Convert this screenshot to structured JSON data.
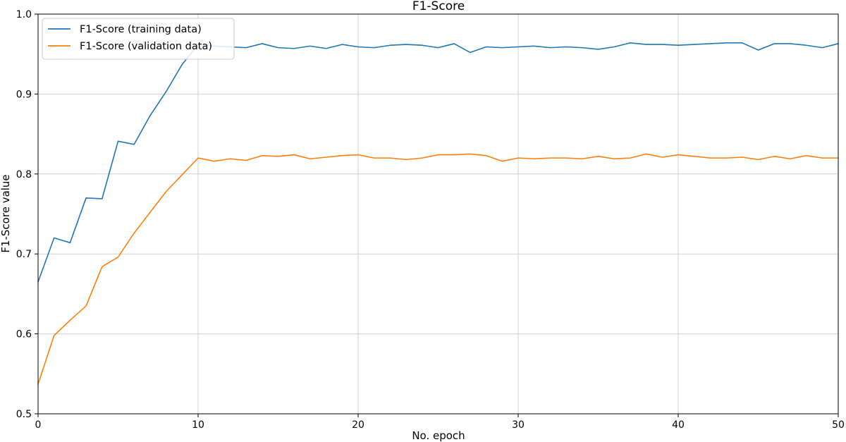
{
  "chart_data": {
    "type": "line",
    "title": "F1-Score",
    "xlabel": "No. epoch",
    "ylabel": "F1-Score value",
    "xlim": [
      0,
      50
    ],
    "ylim": [
      0.5,
      1.0
    ],
    "x_ticks": [
      0,
      10,
      20,
      30,
      40,
      50
    ],
    "y_ticks": [
      0.5,
      0.6,
      0.7,
      0.8,
      0.9,
      1.0
    ],
    "x_tick_labels": [
      "0",
      "10",
      "20",
      "30",
      "40",
      "50"
    ],
    "y_tick_labels": [
      "0.5",
      "0.6",
      "0.7",
      "0.8",
      "0.9",
      "1.0"
    ],
    "grid": true,
    "legend_position": "top-left",
    "x": [
      0,
      1,
      2,
      3,
      4,
      5,
      6,
      7,
      8,
      9,
      10,
      11,
      12,
      13,
      14,
      15,
      16,
      17,
      18,
      19,
      20,
      21,
      22,
      23,
      24,
      25,
      26,
      27,
      28,
      29,
      30,
      31,
      32,
      33,
      34,
      35,
      36,
      37,
      38,
      39,
      40,
      41,
      42,
      43,
      44,
      45,
      46,
      47,
      48,
      49,
      50
    ],
    "series": [
      {
        "name": "F1-Score (training data)",
        "color": "#1f77b4",
        "values": [
          0.665,
          0.72,
          0.714,
          0.77,
          0.769,
          0.841,
          0.837,
          0.873,
          0.903,
          0.937,
          0.962,
          0.96,
          0.959,
          0.958,
          0.963,
          0.958,
          0.957,
          0.96,
          0.957,
          0.962,
          0.959,
          0.958,
          0.961,
          0.962,
          0.961,
          0.958,
          0.963,
          0.952,
          0.959,
          0.958,
          0.959,
          0.96,
          0.958,
          0.959,
          0.958,
          0.956,
          0.959,
          0.964,
          0.962,
          0.962,
          0.961,
          0.962,
          0.963,
          0.964,
          0.964,
          0.955,
          0.963,
          0.963,
          0.961,
          0.958,
          0.963
        ]
      },
      {
        "name": "F1-Score (validation data)",
        "color": "#ff7f0e",
        "values": [
          0.537,
          0.598,
          0.617,
          0.635,
          0.684,
          0.696,
          0.726,
          0.752,
          0.778,
          0.799,
          0.82,
          0.816,
          0.819,
          0.817,
          0.823,
          0.822,
          0.824,
          0.819,
          0.821,
          0.823,
          0.824,
          0.82,
          0.82,
          0.818,
          0.82,
          0.824,
          0.824,
          0.825,
          0.823,
          0.816,
          0.82,
          0.819,
          0.82,
          0.82,
          0.819,
          0.822,
          0.819,
          0.82,
          0.825,
          0.821,
          0.824,
          0.822,
          0.82,
          0.82,
          0.821,
          0.818,
          0.822,
          0.819,
          0.823,
          0.82,
          0.82
        ]
      }
    ]
  }
}
